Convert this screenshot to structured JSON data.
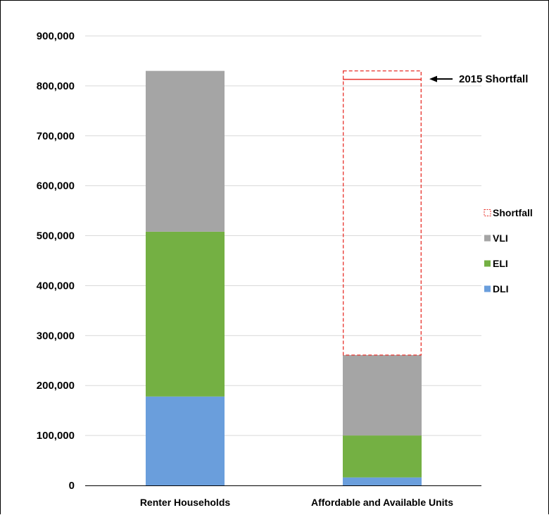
{
  "chart_data": {
    "type": "bar",
    "stacked": true,
    "categories": [
      "Renter Households",
      "Affordable and Available Units"
    ],
    "series": [
      {
        "name": "DLI",
        "values": [
          178000,
          16000
        ],
        "color": "#6a9edc"
      },
      {
        "name": "ELI",
        "values": [
          330000,
          84000
        ],
        "color": "#74b043"
      },
      {
        "name": "VLI",
        "values": [
          322000,
          161000
        ],
        "color": "#a5a5a5"
      },
      {
        "name": "Shortfall",
        "values": [
          0,
          569000
        ],
        "color": "#e8312a",
        "style": "dashed-outline"
      }
    ],
    "ylim": [
      0,
      900000
    ],
    "yticks": [
      0,
      100000,
      200000,
      300000,
      400000,
      500000,
      600000,
      700000,
      800000,
      900000
    ],
    "ytick_labels": [
      "0",
      "100,000",
      "200,000",
      "300,000",
      "400,000",
      "500,000",
      "600,000",
      "700,000",
      "800,000",
      "900,000"
    ],
    "grid": true,
    "legend_position": "right",
    "legend_order": [
      "Shortfall",
      "VLI",
      "ELI",
      "DLI"
    ],
    "annotation": {
      "text": "2015 Shortfall",
      "value": 813000,
      "category": "Affordable and Available Units"
    },
    "title": "",
    "xlabel": "",
    "ylabel": ""
  }
}
